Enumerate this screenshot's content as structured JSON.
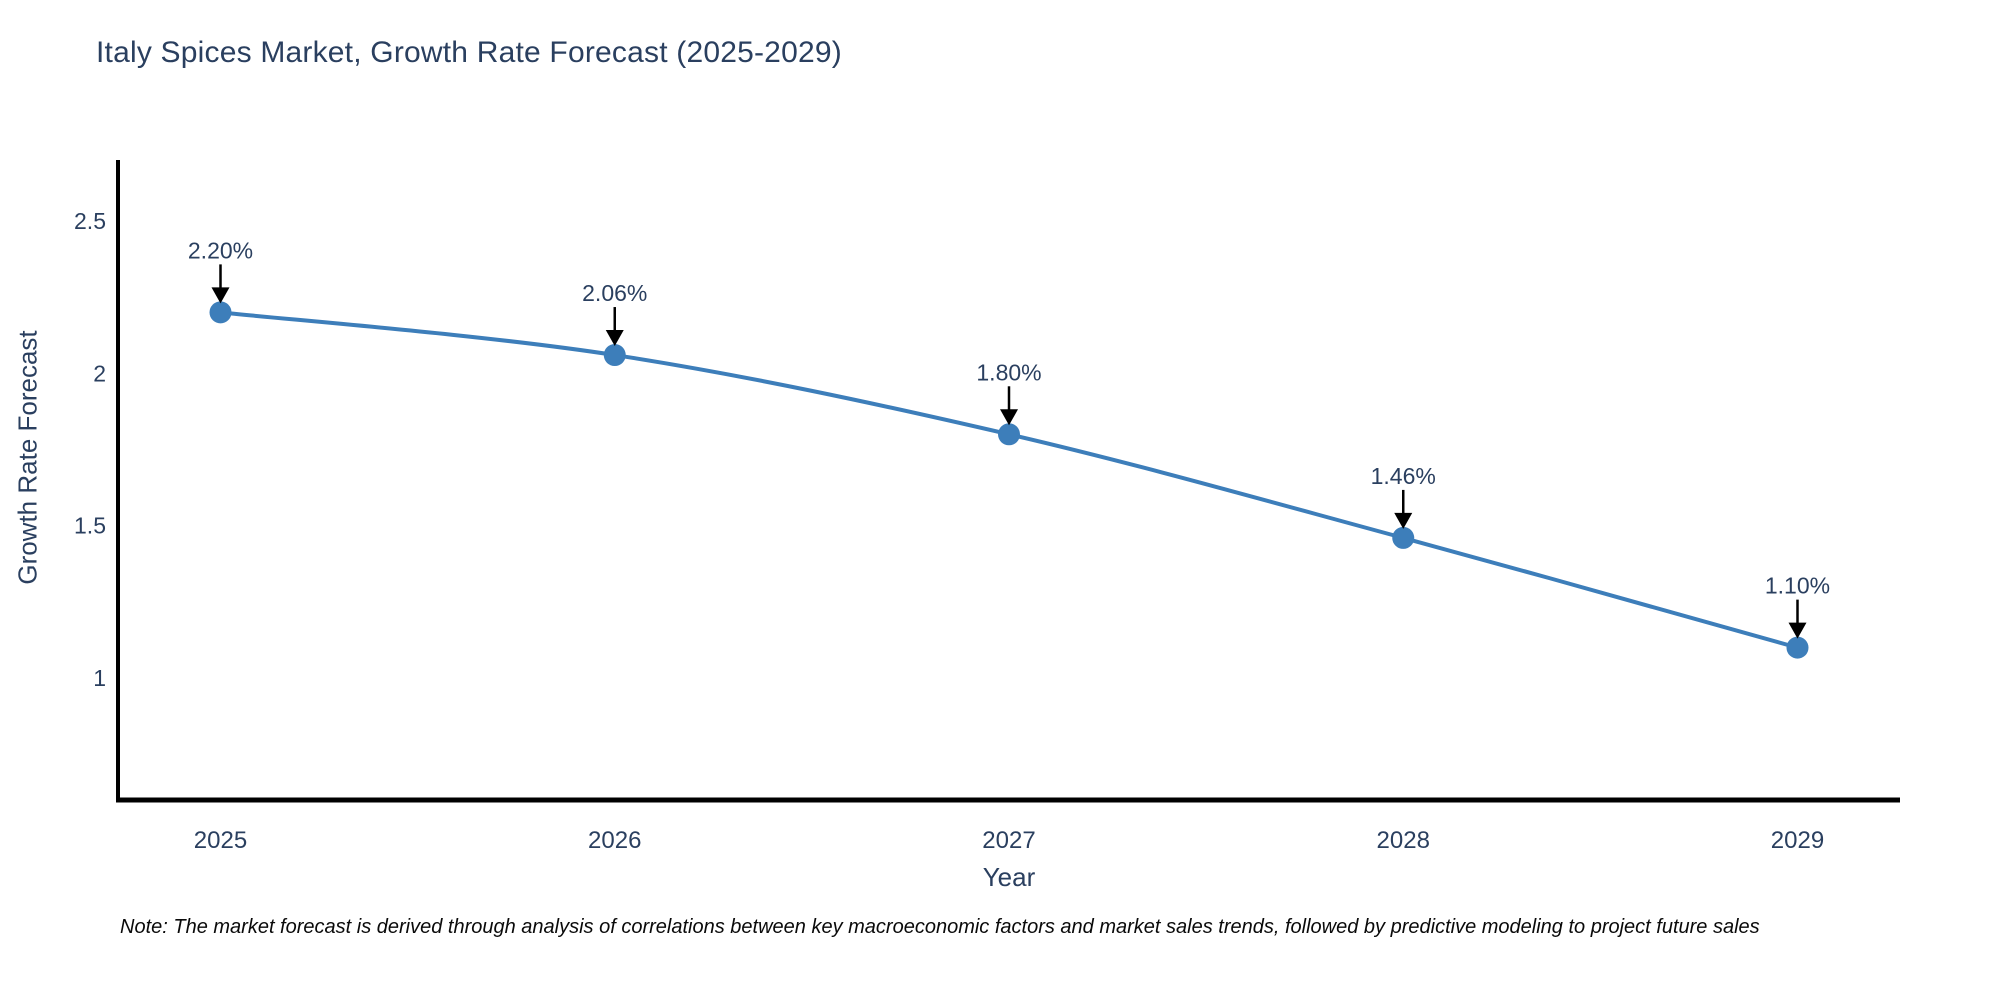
{
  "page": {
    "background": "#ffffff"
  },
  "chart_data": {
    "type": "line",
    "title": "Italy Spices Market, Growth Rate Forecast (2025-2029)",
    "xlabel": "Year",
    "ylabel": "Growth Rate Forecast",
    "categories": [
      2025,
      2026,
      2027,
      2028,
      2029
    ],
    "values": [
      2.2,
      2.06,
      1.8,
      1.46,
      1.1
    ],
    "point_labels": [
      "2.20%",
      "2.06%",
      "1.80%",
      "1.46%",
      "1.10%"
    ],
    "yticks": [
      1,
      1.5,
      2,
      2.5
    ],
    "ytick_labels": [
      "1",
      "1.5",
      "2",
      "2.5"
    ],
    "xtick_labels": [
      "2025",
      "2026",
      "2027",
      "2028",
      "2029"
    ],
    "xlim": [
      2024.74,
      2029.26
    ],
    "ylim": [
      0.6,
      2.7
    ],
    "grid": false,
    "legend": "none",
    "line_color": "#3d7eba",
    "marker_color": "#3d7eba",
    "axis_color": "#000000",
    "tick_color": "#2a3f5f",
    "annotation_text_color": "#2a3f5f",
    "annotation_arrow_color": "#000000"
  },
  "note": {
    "text": "Note: The market forecast is derived through analysis of correlations between key macroeconomic factors and market sales trends, followed by predictive modeling to project future sales"
  }
}
